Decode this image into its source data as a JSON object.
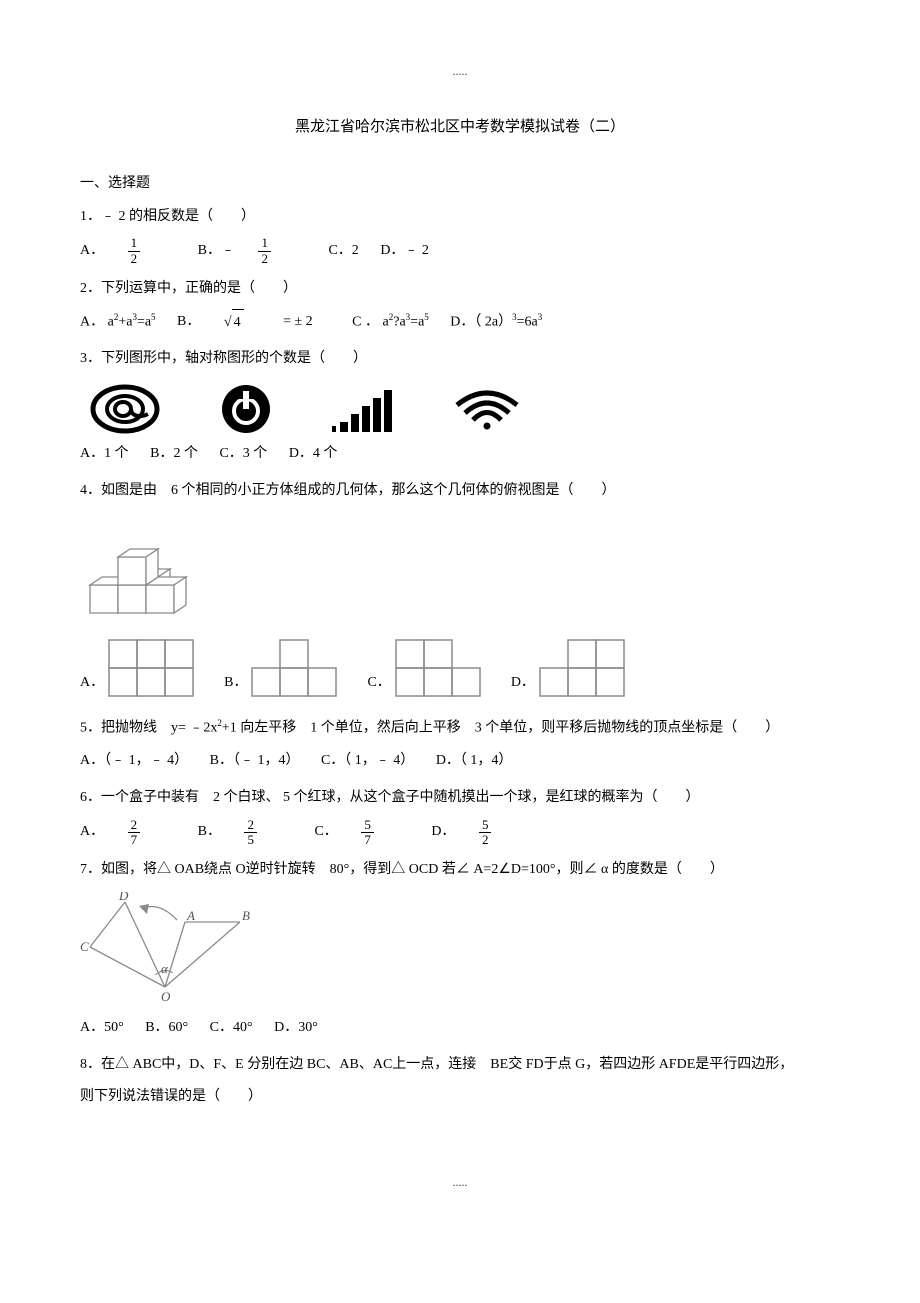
{
  "header_dots": ".....",
  "footer_dots": ".....",
  "title": "黑龙江省哈尔滨市松北区中考数学模拟试卷（二）",
  "section1": "一、选择题",
  "q1": {
    "stem": "1．﹣ 2 的相反数是（　　）",
    "optA_prefix": "A．",
    "optB_prefix": "B．﹣",
    "optC": "C．2",
    "optD": "D．﹣ 2",
    "frac_num": "1",
    "frac_den": "2"
  },
  "q2": {
    "stem": "2．下列运算中，正确的是（　　）",
    "optA_html": "A． a<sup>2</sup>+a<sup>3</sup>=a<sup>5</sup>",
    "optB_prefix": "B．",
    "optB_rad": "4",
    "optB_suffix": " = ± 2",
    "optC_html": "C ． a<sup>2</sup>?a<sup>3</sup>=a<sup>5</sup>",
    "optD_html": "D．（ 2a）<sup>3</sup>=6a<sup>3</sup>"
  },
  "q3": {
    "stem": "3．下列图形中，轴对称图形的个数是（　　）",
    "optA": "A．1 个",
    "optB": "B．2 个",
    "optC": "C．3 个",
    "optD": "D．4 个",
    "icons": {
      "stroke": "#000000",
      "fill": "#000000",
      "wifi_arcs": 3,
      "bars": [
        10,
        18,
        26,
        34,
        42
      ]
    }
  },
  "q4": {
    "stem": "4．如图是由　6 个相同的小正方体组成的几何体，那么这个几何体的俯视图是（　　）",
    "optA": "A．",
    "optB": "B．",
    "optC": "C．",
    "optD": "D．",
    "solid": {
      "stroke": "#8a8a8a",
      "fill": "#ffffff",
      "cell": 28
    },
    "grids": {
      "stroke": "#8a8a8a",
      "cell": 28,
      "A": {
        "cols": 3,
        "rows": 2,
        "hidden": []
      },
      "B": {
        "cols": 3,
        "rows": 2,
        "hidden": [
          [
            0,
            0
          ],
          [
            2,
            0
          ]
        ]
      },
      "C": {
        "cols": 3,
        "rows": 2,
        "hidden": [
          [
            2,
            0
          ]
        ]
      },
      "D": {
        "cols": 3,
        "rows": 2,
        "hidden": [
          [
            0,
            0
          ]
        ]
      }
    }
  },
  "q5": {
    "stem_html": "5．把抛物线　y= ﹣2x<sup>2</sup>+1 向左平移　1 个单位，然后向上平移　3 个单位，则平移后抛物线的顶点坐标是（　　）",
    "optA": "A．（﹣ 1，﹣ 4）",
    "optB": "B．（﹣ 1，4）",
    "optC": "C．（ 1，﹣ 4）",
    "optD": "D．（ 1，4）"
  },
  "q6": {
    "stem": "6．一个盒子中装有　2 个白球、 5 个红球，从这个盒子中随机摸出一个球，是红球的概率为（　　）",
    "optA_prefix": "A．",
    "optB_prefix": "B．",
    "optC_prefix": "C．",
    "optD_prefix": "D．",
    "fracs": {
      "A": {
        "num": "2",
        "den": "7"
      },
      "B": {
        "num": "2",
        "den": "5"
      },
      "C": {
        "num": "5",
        "den": "7"
      },
      "D": {
        "num": "5",
        "den": "2"
      }
    }
  },
  "q7": {
    "stem": "7．如图，将△ OAB绕点 O逆时针旋转　80°，得到△ OCD 若∠ A=2∠D=100°，则∠ α 的度数是（　　）",
    "optA": "A．50°",
    "optB": "B．60°",
    "optC": "C．40°",
    "optD": "D．30°",
    "fig": {
      "stroke": "#8a8a8a",
      "labels": {
        "O": "O",
        "A": "A",
        "B": "B",
        "C": "C",
        "D": "D",
        "alpha": "α"
      },
      "O": [
        85,
        95
      ],
      "A": [
        105,
        30
      ],
      "B": [
        160,
        30
      ],
      "C": [
        10,
        55
      ],
      "D": [
        45,
        10
      ]
    }
  },
  "q8": {
    "stem1": "8．在△ ABC中，D、F、E 分别在边 BC、AB、AC上一点，连接　BE交 FD于点 G，若四边形 AFDE是平行四边形，",
    "stem2": "则下列说法错误的是（　　）"
  }
}
